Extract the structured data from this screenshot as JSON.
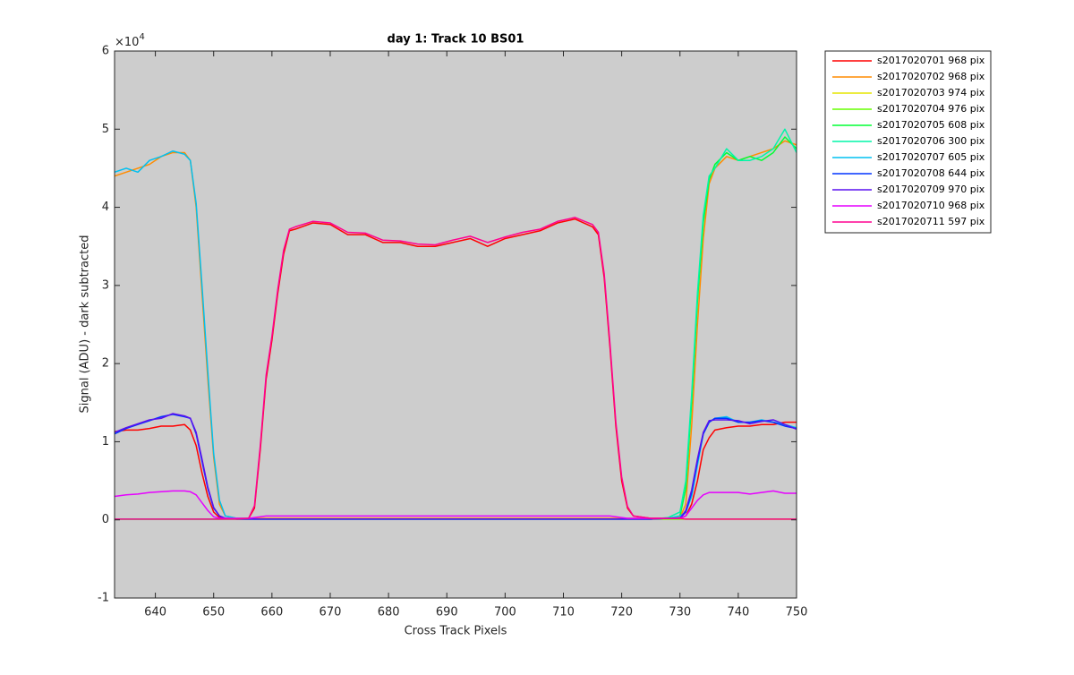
{
  "chart_data": {
    "type": "line",
    "title": "day 1: Track 10  BS01",
    "x_label": "Cross Track Pixels",
    "y_label": "Signal (ADU) - dark subtracted",
    "y_multiplier": {
      "base": "×10",
      "exponent": "4"
    },
    "xlim": [
      633,
      750
    ],
    "ylim": [
      -1,
      6
    ],
    "xticks": [
      640,
      650,
      660,
      670,
      680,
      690,
      700,
      710,
      720,
      730,
      740,
      750
    ],
    "yticks": [
      -1,
      0,
      1,
      2,
      3,
      4,
      5,
      6
    ],
    "background": "#cdcdcd",
    "legend": "outside-right",
    "x": [
      633,
      635,
      637,
      639,
      641,
      643,
      645,
      646,
      647,
      648,
      649,
      650,
      651,
      652,
      654,
      656,
      657,
      658,
      659,
      660,
      661,
      662,
      663,
      664,
      667,
      670,
      673,
      676,
      679,
      682,
      685,
      688,
      691,
      694,
      697,
      700,
      703,
      706,
      709,
      712,
      715,
      716,
      717,
      718,
      719,
      720,
      721,
      722,
      725,
      728,
      730,
      731,
      732,
      733,
      734,
      735,
      736,
      738,
      740,
      742,
      744,
      746,
      748,
      750
    ],
    "series": [
      {
        "name": "s2017020701 968 pix",
        "color": "#ff0000",
        "values": [
          1.13,
          1.15,
          1.15,
          1.17,
          1.2,
          1.2,
          1.22,
          1.15,
          0.95,
          0.6,
          0.3,
          0.1,
          0.03,
          0.02,
          0.02,
          0.02,
          0.15,
          0.9,
          1.8,
          2.3,
          2.9,
          3.4,
          3.7,
          3.72,
          3.8,
          3.78,
          3.65,
          3.65,
          3.55,
          3.55,
          3.5,
          3.5,
          3.55,
          3.6,
          3.5,
          3.6,
          3.65,
          3.7,
          3.8,
          3.85,
          3.75,
          3.65,
          3.1,
          2.2,
          1.2,
          0.5,
          0.15,
          0.05,
          0.02,
          0.02,
          0.02,
          0.05,
          0.2,
          0.5,
          0.9,
          1.05,
          1.15,
          1.18,
          1.2,
          1.2,
          1.22,
          1.22,
          1.25,
          1.25
        ]
      },
      {
        "name": "s2017020702 968 pix",
        "color": "#ff8c00",
        "values": [
          4.4,
          4.45,
          4.5,
          4.55,
          4.65,
          4.7,
          4.7,
          4.6,
          4.0,
          2.9,
          1.8,
          0.8,
          0.2,
          0.05,
          0.02,
          0.02,
          0.02,
          0.02,
          0.02,
          0.02,
          0.02,
          0.02,
          0.02,
          0.02,
          0.02,
          0.02,
          0.02,
          0.02,
          0.02,
          0.02,
          0.02,
          0.02,
          0.02,
          0.02,
          0.02,
          0.02,
          0.02,
          0.02,
          0.02,
          0.02,
          0.02,
          0.02,
          0.02,
          0.02,
          0.02,
          0.02,
          0.02,
          0.02,
          0.02,
          0.02,
          0.03,
          0.2,
          1.2,
          2.5,
          3.6,
          4.3,
          4.5,
          4.65,
          4.6,
          4.65,
          4.7,
          4.75,
          4.85,
          4.8
        ]
      },
      {
        "name": "s2017020703 974 pix",
        "color": "#e6e600",
        "values": [
          0.01,
          0.01,
          0.01,
          0.01,
          0.01,
          0.01,
          0.01,
          0.01,
          0.01,
          0.01,
          0.01,
          0.01,
          0.01,
          0.01,
          0.01,
          0.01,
          0.01,
          0.01,
          0.01,
          0.01,
          0.01,
          0.01,
          0.01,
          0.01,
          0.01,
          0.01,
          0.01,
          0.01,
          0.01,
          0.01,
          0.01,
          0.01,
          0.01,
          0.01,
          0.01,
          0.01,
          0.01,
          0.01,
          0.01,
          0.01,
          0.01,
          0.01,
          0.01,
          0.01,
          0.01,
          0.01,
          0.01,
          0.01,
          0.01,
          0.01,
          0.01,
          0.01,
          0.01,
          0.01,
          0.01,
          0.01,
          0.01,
          0.01,
          0.01,
          0.01,
          0.01,
          0.01,
          0.01,
          0.01
        ]
      },
      {
        "name": "s2017020704 976 pix",
        "color": "#66ff00",
        "values": [
          0.01,
          0.01,
          0.01,
          0.01,
          0.01,
          0.01,
          0.01,
          0.01,
          0.01,
          0.01,
          0.01,
          0.01,
          0.01,
          0.01,
          0.01,
          0.01,
          0.01,
          0.01,
          0.01,
          0.01,
          0.01,
          0.01,
          0.01,
          0.01,
          0.01,
          0.01,
          0.01,
          0.01,
          0.01,
          0.01,
          0.01,
          0.01,
          0.01,
          0.01,
          0.01,
          0.01,
          0.01,
          0.01,
          0.01,
          0.01,
          0.01,
          0.01,
          0.01,
          0.01,
          0.01,
          0.01,
          0.01,
          0.01,
          0.01,
          0.01,
          0.01,
          0.01,
          0.01,
          0.01,
          0.01,
          0.01,
          0.01,
          0.01,
          0.01,
          0.01,
          0.01,
          0.01,
          0.01,
          0.01
        ]
      },
      {
        "name": "s2017020705 608 pix",
        "color": "#00ff33",
        "values": [
          0.01,
          0.01,
          0.01,
          0.01,
          0.01,
          0.01,
          0.01,
          0.01,
          0.01,
          0.01,
          0.01,
          0.01,
          0.01,
          0.01,
          0.01,
          0.01,
          0.01,
          0.01,
          0.01,
          0.01,
          0.01,
          0.01,
          0.01,
          0.01,
          0.01,
          0.01,
          0.01,
          0.01,
          0.01,
          0.01,
          0.01,
          0.01,
          0.01,
          0.01,
          0.01,
          0.01,
          0.01,
          0.01,
          0.01,
          0.01,
          0.01,
          0.01,
          0.01,
          0.01,
          0.01,
          0.01,
          0.01,
          0.01,
          0.01,
          0.02,
          0.05,
          0.4,
          1.5,
          2.8,
          3.8,
          4.35,
          4.55,
          4.7,
          4.6,
          4.65,
          4.6,
          4.7,
          4.9,
          4.75
        ]
      },
      {
        "name": "s2017020706 300 pix",
        "color": "#00f5a8",
        "values": [
          0.01,
          0.01,
          0.01,
          0.01,
          0.01,
          0.01,
          0.01,
          0.01,
          0.01,
          0.01,
          0.01,
          0.01,
          0.01,
          0.01,
          0.01,
          0.01,
          0.01,
          0.01,
          0.01,
          0.01,
          0.01,
          0.01,
          0.01,
          0.01,
          0.01,
          0.01,
          0.01,
          0.01,
          0.01,
          0.01,
          0.01,
          0.01,
          0.01,
          0.01,
          0.01,
          0.01,
          0.01,
          0.01,
          0.01,
          0.01,
          0.01,
          0.01,
          0.01,
          0.01,
          0.01,
          0.01,
          0.01,
          0.01,
          0.01,
          0.03,
          0.1,
          0.5,
          1.6,
          2.9,
          3.9,
          4.4,
          4.5,
          4.75,
          4.6,
          4.6,
          4.65,
          4.75,
          5.0,
          4.7
        ]
      },
      {
        "name": "s2017020707 605 pix",
        "color": "#00c0f0",
        "values": [
          4.45,
          4.5,
          4.45,
          4.6,
          4.65,
          4.72,
          4.68,
          4.6,
          4.05,
          3.0,
          1.9,
          0.85,
          0.25,
          0.05,
          0.02,
          0.02,
          0.01,
          0.01,
          0.01,
          0.01,
          0.01,
          0.01,
          0.01,
          0.01,
          0.01,
          0.01,
          0.01,
          0.01,
          0.01,
          0.01,
          0.01,
          0.01,
          0.01,
          0.01,
          0.01,
          0.01,
          0.01,
          0.01,
          0.01,
          0.01,
          0.01,
          0.01,
          0.01,
          0.01,
          0.01,
          0.01,
          0.01,
          0.01,
          0.01,
          0.02,
          0.05,
          0.1,
          0.3,
          0.7,
          1.1,
          1.25,
          1.3,
          1.32,
          1.25,
          1.25,
          1.28,
          1.25,
          1.22,
          1.18
        ]
      },
      {
        "name": "s2017020708 644 pix",
        "color": "#0033ff",
        "values": [
          1.1,
          1.17,
          1.22,
          1.27,
          1.32,
          1.35,
          1.32,
          1.3,
          1.1,
          0.75,
          0.4,
          0.15,
          0.05,
          0.02,
          0.01,
          0.01,
          0.01,
          0.01,
          0.01,
          0.01,
          0.01,
          0.01,
          0.01,
          0.01,
          0.01,
          0.01,
          0.01,
          0.01,
          0.01,
          0.01,
          0.01,
          0.01,
          0.01,
          0.01,
          0.01,
          0.01,
          0.01,
          0.01,
          0.01,
          0.01,
          0.01,
          0.01,
          0.01,
          0.01,
          0.01,
          0.01,
          0.01,
          0.01,
          0.01,
          0.02,
          0.02,
          0.1,
          0.35,
          0.75,
          1.1,
          1.25,
          1.3,
          1.3,
          1.25,
          1.25,
          1.27,
          1.25,
          1.2,
          1.17
        ]
      },
      {
        "name": "s2017020709 970 pix",
        "color": "#5a10f0",
        "values": [
          1.12,
          1.18,
          1.23,
          1.28,
          1.3,
          1.36,
          1.33,
          1.3,
          1.12,
          0.78,
          0.42,
          0.16,
          0.05,
          0.02,
          0.01,
          0.01,
          0.01,
          0.01,
          0.01,
          0.01,
          0.01,
          0.01,
          0.01,
          0.01,
          0.01,
          0.01,
          0.01,
          0.01,
          0.01,
          0.01,
          0.01,
          0.01,
          0.01,
          0.01,
          0.01,
          0.01,
          0.01,
          0.01,
          0.01,
          0.01,
          0.01,
          0.01,
          0.01,
          0.01,
          0.01,
          0.01,
          0.01,
          0.01,
          0.01,
          0.02,
          0.02,
          0.12,
          0.38,
          0.78,
          1.12,
          1.27,
          1.28,
          1.28,
          1.27,
          1.23,
          1.26,
          1.28,
          1.22,
          1.16
        ]
      },
      {
        "name": "s2017020710 968 pix",
        "color": "#e600ff",
        "values": [
          0.3,
          0.32,
          0.33,
          0.35,
          0.36,
          0.37,
          0.37,
          0.36,
          0.32,
          0.22,
          0.12,
          0.04,
          0.02,
          0.02,
          0.02,
          0.02,
          0.03,
          0.04,
          0.05,
          0.05,
          0.05,
          0.05,
          0.05,
          0.05,
          0.05,
          0.05,
          0.05,
          0.05,
          0.05,
          0.05,
          0.05,
          0.05,
          0.05,
          0.05,
          0.05,
          0.05,
          0.05,
          0.05,
          0.05,
          0.05,
          0.05,
          0.05,
          0.05,
          0.05,
          0.04,
          0.03,
          0.02,
          0.02,
          0.02,
          0.02,
          0.02,
          0.05,
          0.15,
          0.25,
          0.32,
          0.35,
          0.35,
          0.35,
          0.35,
          0.33,
          0.35,
          0.37,
          0.34,
          0.34
        ]
      },
      {
        "name": "s2017020711 597 pix",
        "color": "#ff0090",
        "values": [
          0.01,
          0.01,
          0.01,
          0.01,
          0.01,
          0.01,
          0.01,
          0.01,
          0.01,
          0.01,
          0.01,
          0.01,
          0.01,
          0.01,
          0.01,
          0.02,
          0.18,
          0.95,
          1.85,
          2.35,
          2.95,
          3.45,
          3.72,
          3.75,
          3.82,
          3.8,
          3.68,
          3.67,
          3.58,
          3.57,
          3.53,
          3.52,
          3.58,
          3.63,
          3.55,
          3.62,
          3.68,
          3.72,
          3.82,
          3.87,
          3.78,
          3.68,
          3.15,
          2.25,
          1.25,
          0.55,
          0.17,
          0.05,
          0.02,
          0.02,
          0.02,
          0.01,
          0.01,
          0.01,
          0.01,
          0.01,
          0.01,
          0.01,
          0.01,
          0.01,
          0.01,
          0.01,
          0.01,
          0.01
        ]
      }
    ]
  }
}
